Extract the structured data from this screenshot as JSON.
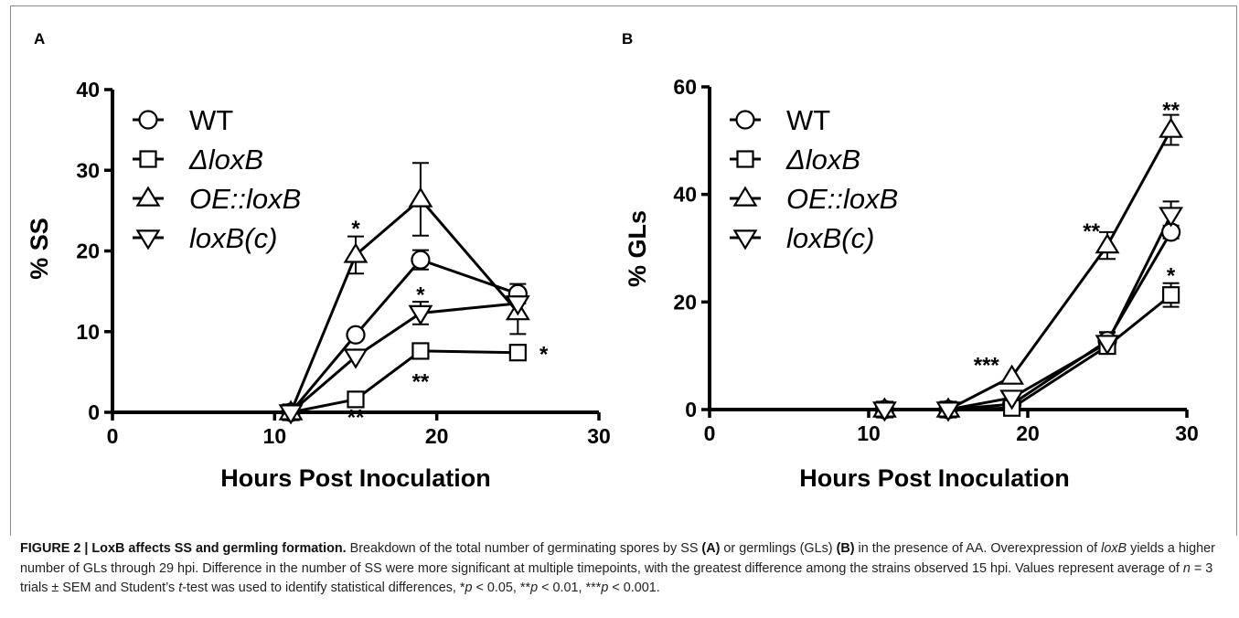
{
  "panel_letters": [
    "A",
    "B"
  ],
  "chart_data": [
    {
      "type": "line",
      "panel": "A",
      "xlabel": "Hours Post Inoculation",
      "ylabel": "% SS",
      "xlim": [
        0,
        30
      ],
      "ylim": [
        0,
        40
      ],
      "xticks": [
        "0",
        "10",
        "20",
        "30"
      ],
      "yticks": [
        "0",
        "10",
        "20",
        "30",
        "40"
      ],
      "grid": false,
      "legend_position": "top-left",
      "series": [
        {
          "name": "WT",
          "marker": "circle",
          "x": [
            11,
            15,
            19,
            25
          ],
          "y": [
            0,
            9.6,
            18.9,
            14.7
          ],
          "err": [
            0,
            0,
            1.2,
            1.2
          ]
        },
        {
          "name": "ΔloxB",
          "marker": "square",
          "x": [
            11,
            15,
            19,
            25
          ],
          "y": [
            0,
            1.6,
            7.6,
            7.4
          ],
          "err": [
            0,
            0,
            0.8,
            0
          ]
        },
        {
          "name": "OE::loxB",
          "marker": "triangle-up",
          "x": [
            11,
            15,
            19,
            25
          ],
          "y": [
            0,
            19.5,
            26.4,
            12.4
          ],
          "err": [
            0,
            2.3,
            4.5,
            2.7
          ]
        },
        {
          "name": "loxB(c)",
          "marker": "triangle-down",
          "x": [
            11,
            15,
            19,
            25
          ],
          "y": [
            0,
            6.9,
            12.3,
            13.5
          ],
          "err": [
            0,
            0,
            1.4,
            0
          ]
        }
      ],
      "annotations": [
        {
          "text": "*",
          "x": 15,
          "y": 23.0
        },
        {
          "text": "**",
          "x": 15,
          "y": -0.4
        },
        {
          "text": "*",
          "x": 19,
          "y": 14.8
        },
        {
          "text": "**",
          "x": 19,
          "y": 4.0
        },
        {
          "text": "*",
          "x": 26.6,
          "y": 7.4
        }
      ]
    },
    {
      "type": "line",
      "panel": "B",
      "xlabel": "Hours Post Inoculation",
      "ylabel": "% GLs",
      "xlim": [
        0,
        30
      ],
      "ylim": [
        0,
        60
      ],
      "xticks": [
        "0",
        "10",
        "20",
        "30"
      ],
      "yticks": [
        "0",
        "20",
        "40",
        "60"
      ],
      "grid": false,
      "legend_position": "top-left",
      "series": [
        {
          "name": "WT",
          "marker": "circle",
          "x": [
            11,
            15,
            19,
            25,
            29
          ],
          "y": [
            0,
            0,
            1.0,
            12.8,
            33.0
          ],
          "err": [
            0,
            0,
            0,
            1.5,
            1.2
          ]
        },
        {
          "name": "ΔloxB",
          "marker": "square",
          "x": [
            11,
            15,
            19,
            25,
            29
          ],
          "y": [
            0,
            0,
            0.3,
            11.8,
            21.3
          ],
          "err": [
            0,
            0,
            0,
            1.3,
            2.2
          ]
        },
        {
          "name": "OE::loxB",
          "marker": "triangle-up",
          "x": [
            11,
            15,
            19,
            25,
            29
          ],
          "y": [
            0,
            0,
            6.1,
            30.5,
            52.0
          ],
          "err": [
            0,
            0,
            0,
            2.5,
            2.8
          ]
        },
        {
          "name": "loxB(c)",
          "marker": "triangle-down",
          "x": [
            11,
            15,
            19,
            25,
            29
          ],
          "y": [
            0,
            0,
            2.2,
            12.4,
            36.2
          ],
          "err": [
            0,
            0,
            0,
            2.0,
            2.5
          ]
        }
      ],
      "annotations": [
        {
          "text": "***",
          "x": 17.4,
          "y": 8.6
        },
        {
          "text": "**",
          "x": 24.0,
          "y": 33.5
        },
        {
          "text": "**",
          "x": 29.0,
          "y": 56.0
        },
        {
          "text": "*",
          "x": 29.0,
          "y": 25.2
        }
      ]
    }
  ],
  "caption": {
    "label": "FIGURE 2 | LoxB affects SS and germling formation.",
    "parts": [
      {
        "t": " Breakdown of the total number of germinating spores by SS "
      },
      {
        "b": "(A)"
      },
      {
        "t": " or germlings (GLs) "
      },
      {
        "b": "(B)"
      },
      {
        "t": " in the presence of AA. Overexpression of "
      },
      {
        "i": "loxB"
      },
      {
        "t": " yields a higher number of GLs through 29 hpi. Difference in the number of SS were more significant at multiple timepoints, with the greatest difference among the strains observed 15 hpi. Values represent average of "
      },
      {
        "i": "n"
      },
      {
        "t": " = 3 trials ± SEM and Student’s "
      },
      {
        "i": "t"
      },
      {
        "t": "-test was used to identify statistical differences, *"
      },
      {
        "i": "p"
      },
      {
        "t": " < 0.05, **"
      },
      {
        "i": "p"
      },
      {
        "t": " < 0.01, ***"
      },
      {
        "i": "p"
      },
      {
        "t": " < 0.001."
      }
    ]
  }
}
